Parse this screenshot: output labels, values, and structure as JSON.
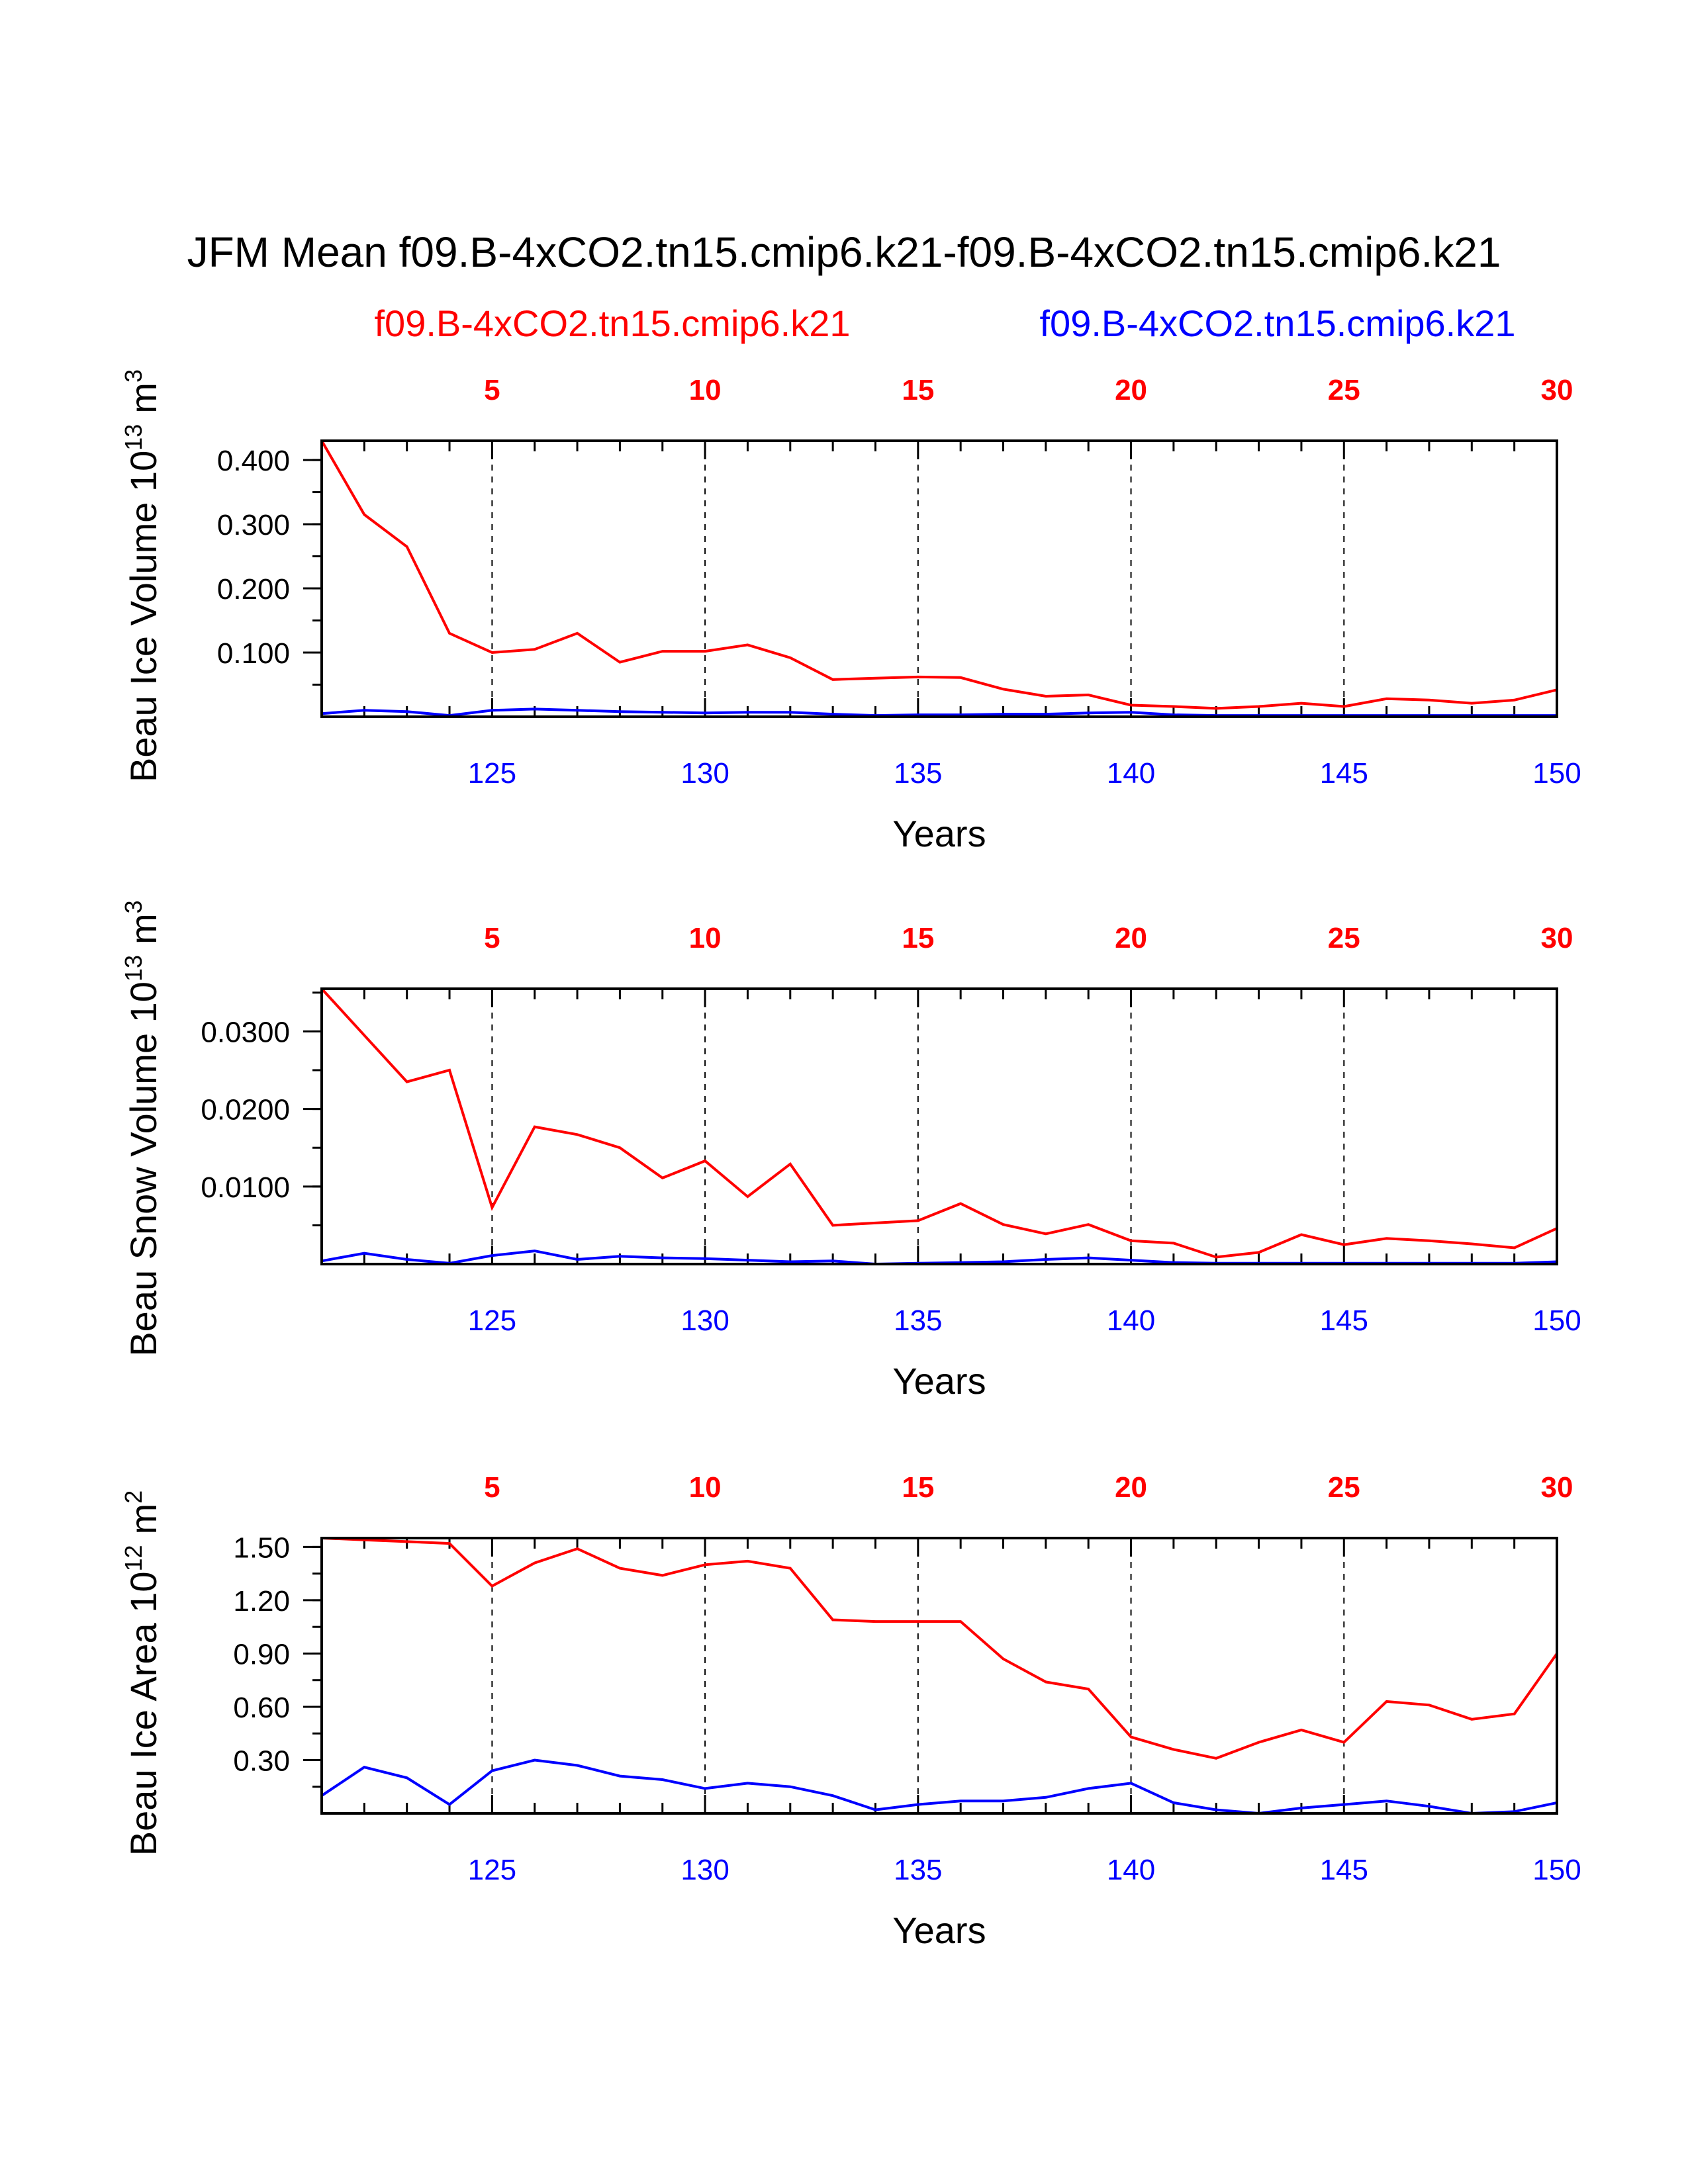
{
  "title": "JFM Mean f09.B-4xCO2.tn15.cmip6.k21-f09.B-4xCO2.tn15.cmip6.k21",
  "legend": {
    "red_case": "f09.B-4xCO2.tn15.cmip6.k21",
    "blue_case": "f09.B-4xCO2.tn15.cmip6.k21"
  },
  "colors": {
    "red": "#ff0000",
    "blue": "#0000ff",
    "black": "#000000"
  },
  "chart_data": [
    {
      "type": "line",
      "ylabel_main": "Beau Ice Volume 10",
      "ylabel_exp": "13",
      "ylabel_unit": "m",
      "ylabel_unit_exp": "3",
      "xlabel": "Years",
      "xlim": [
        121,
        150
      ],
      "ylim": [
        0.0,
        0.43
      ],
      "ytick_values": [
        0.1,
        0.2,
        0.3,
        0.4
      ],
      "ytick_labels": [
        "0.100",
        "0.200",
        "0.300",
        "0.400"
      ],
      "bottom_ticks": {
        "values": [
          125,
          130,
          135,
          140,
          145,
          150
        ],
        "labels": [
          "125",
          "130",
          "135",
          "140",
          "145",
          "150"
        ]
      },
      "top_ticks": {
        "values": [
          125,
          130,
          135,
          140,
          145,
          150
        ],
        "labels": [
          "5",
          "10",
          "15",
          "20",
          "25",
          "30"
        ]
      },
      "x": [
        121,
        122,
        123,
        124,
        125,
        126,
        127,
        128,
        129,
        130,
        131,
        132,
        133,
        134,
        135,
        136,
        137,
        138,
        139,
        140,
        141,
        142,
        143,
        144,
        145,
        146,
        147,
        148,
        149,
        150
      ],
      "series": [
        {
          "name": "f09.B-4xCO2.tn15.cmip6.k21 (red)",
          "color": "#ff0000",
          "values": [
            0.43,
            0.315,
            0.265,
            0.13,
            0.1,
            0.105,
            0.13,
            0.085,
            0.102,
            0.102,
            0.112,
            0.092,
            0.058,
            0.06,
            0.062,
            0.061,
            0.043,
            0.032,
            0.034,
            0.018,
            0.016,
            0.013,
            0.016,
            0.021,
            0.016,
            0.028,
            0.026,
            0.021,
            0.026,
            0.042
          ]
        },
        {
          "name": "f09.B-4xCO2.tn15.cmip6.k21 (blue)",
          "color": "#0000ff",
          "values": [
            0.005,
            0.01,
            0.008,
            0.002,
            0.01,
            0.012,
            0.01,
            0.008,
            0.007,
            0.006,
            0.007,
            0.007,
            0.004,
            0.002,
            0.003,
            0.003,
            0.004,
            0.004,
            0.006,
            0.007,
            0.003,
            0.002,
            0.002,
            0.002,
            0.002,
            0.002,
            0.002,
            0.002,
            0.002,
            0.002
          ]
        }
      ]
    },
    {
      "type": "line",
      "ylabel_main": "Beau Snow Volume 10",
      "ylabel_exp": "13",
      "ylabel_unit": "m",
      "ylabel_unit_exp": "3",
      "xlabel": "Years",
      "xlim": [
        121,
        150
      ],
      "ylim": [
        0.0,
        0.0355
      ],
      "ytick_values": [
        0.01,
        0.02,
        0.03
      ],
      "ytick_labels": [
        "0.0100",
        "0.0200",
        "0.0300"
      ],
      "bottom_ticks": {
        "values": [
          125,
          130,
          135,
          140,
          145,
          150
        ],
        "labels": [
          "125",
          "130",
          "135",
          "140",
          "145",
          "150"
        ]
      },
      "top_ticks": {
        "values": [
          125,
          130,
          135,
          140,
          145,
          150
        ],
        "labels": [
          "5",
          "10",
          "15",
          "20",
          "25",
          "30"
        ]
      },
      "x": [
        121,
        122,
        123,
        124,
        125,
        126,
        127,
        128,
        129,
        130,
        131,
        132,
        133,
        134,
        135,
        136,
        137,
        138,
        139,
        140,
        141,
        142,
        143,
        144,
        145,
        146,
        147,
        148,
        149,
        150
      ],
      "series": [
        {
          "name": "f09.B-4xCO2.tn15.cmip6.k21 (red)",
          "color": "#ff0000",
          "values": [
            0.0355,
            0.0295,
            0.0235,
            0.025,
            0.0073,
            0.0177,
            0.0167,
            0.015,
            0.0111,
            0.0133,
            0.0087,
            0.0129,
            0.005,
            0.0053,
            0.0056,
            0.0078,
            0.0051,
            0.0039,
            0.0051,
            0.003,
            0.0027,
            0.0009,
            0.0015,
            0.0038,
            0.0025,
            0.0033,
            0.003,
            0.0026,
            0.0021,
            0.0046
          ]
        },
        {
          "name": "f09.B-4xCO2.tn15.cmip6.k21 (blue)",
          "color": "#0000ff",
          "values": [
            0.0004,
            0.0014,
            0.0006,
            0.0001,
            0.0011,
            0.0017,
            0.0006,
            0.001,
            0.0008,
            0.0007,
            0.0005,
            0.0003,
            0.0004,
            0.0,
            0.0001,
            0.0002,
            0.0003,
            0.0006,
            0.0008,
            0.0005,
            0.0002,
            0.0001,
            0.0001,
            0.0001,
            0.0001,
            0.0001,
            0.0001,
            0.0001,
            0.0001,
            0.0003
          ]
        }
      ]
    },
    {
      "type": "line",
      "ylabel_main": "Beau Ice Area 10",
      "ylabel_exp": "12",
      "ylabel_unit": "m",
      "ylabel_unit_exp": "2",
      "xlabel": "Years",
      "xlim": [
        121,
        150
      ],
      "ylim": [
        0.0,
        1.55
      ],
      "ytick_values": [
        0.3,
        0.6,
        0.9,
        1.2,
        1.5
      ],
      "ytick_labels": [
        "0.30",
        "0.60",
        "0.90",
        "1.20",
        "1.50"
      ],
      "bottom_ticks": {
        "values": [
          125,
          130,
          135,
          140,
          145,
          150
        ],
        "labels": [
          "125",
          "130",
          "135",
          "140",
          "145",
          "150"
        ]
      },
      "top_ticks": {
        "values": [
          125,
          130,
          135,
          140,
          145,
          150
        ],
        "labels": [
          "5",
          "10",
          "15",
          "20",
          "25",
          "30"
        ]
      },
      "x": [
        121,
        122,
        123,
        124,
        125,
        126,
        127,
        128,
        129,
        130,
        131,
        132,
        133,
        134,
        135,
        136,
        137,
        138,
        139,
        140,
        141,
        142,
        143,
        144,
        145,
        146,
        147,
        148,
        149,
        150
      ],
      "series": [
        {
          "name": "f09.B-4xCO2.tn15.cmip6.k21 (red)",
          "color": "#ff0000",
          "values": [
            1.55,
            1.54,
            1.53,
            1.52,
            1.28,
            1.41,
            1.49,
            1.38,
            1.34,
            1.4,
            1.42,
            1.38,
            1.09,
            1.08,
            1.08,
            1.08,
            0.87,
            0.74,
            0.7,
            0.43,
            0.36,
            0.31,
            0.4,
            0.47,
            0.4,
            0.63,
            0.61,
            0.53,
            0.56,
            0.9
          ]
        },
        {
          "name": "f09.B-4xCO2.tn15.cmip6.k21 (blue)",
          "color": "#0000ff",
          "values": [
            0.1,
            0.26,
            0.2,
            0.05,
            0.24,
            0.3,
            0.27,
            0.21,
            0.19,
            0.14,
            0.17,
            0.15,
            0.1,
            0.02,
            0.05,
            0.07,
            0.07,
            0.09,
            0.14,
            0.17,
            0.06,
            0.02,
            0.0,
            0.03,
            0.05,
            0.07,
            0.04,
            0.0,
            0.01,
            0.06
          ]
        }
      ]
    }
  ]
}
